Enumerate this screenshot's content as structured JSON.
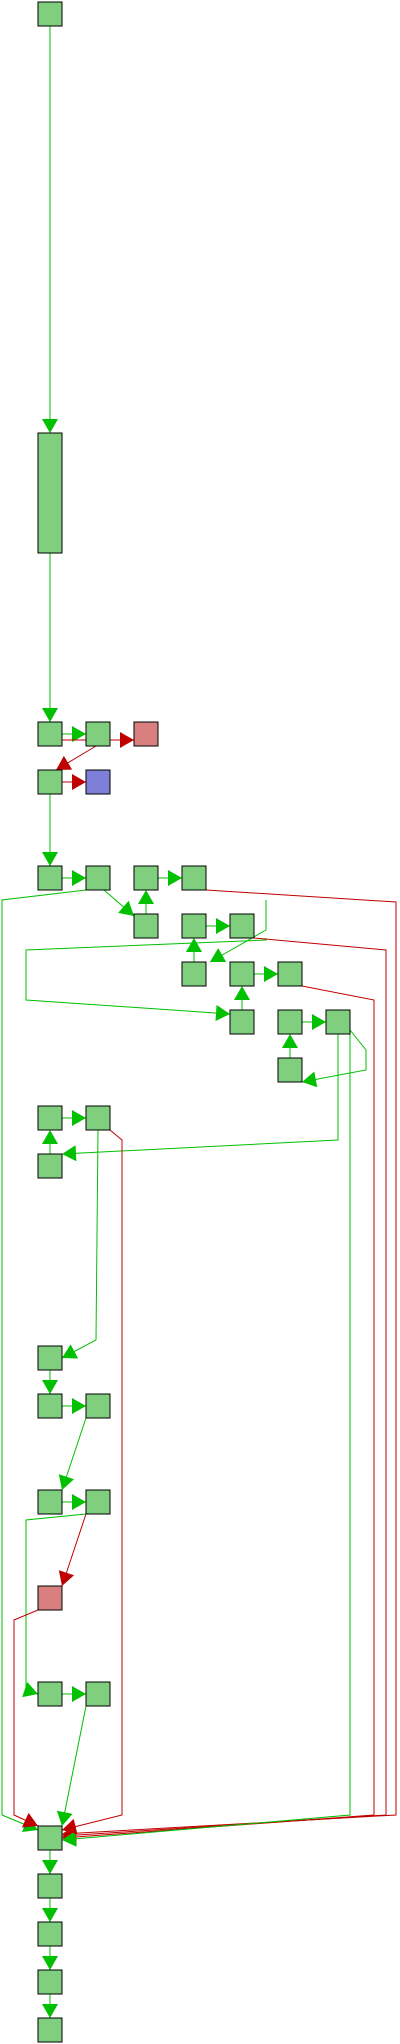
{
  "colors": {
    "node_default": "#7fcf7f",
    "node_error": "#d97f7f",
    "node_exit": "#7f7fd9",
    "edge_true": "#00c000",
    "edge_false": "#c00000",
    "border": "#000000"
  },
  "nodes": [
    {
      "id": "n0",
      "kind": "default"
    },
    {
      "id": "n1",
      "kind": "default"
    },
    {
      "id": "n2",
      "kind": "default"
    },
    {
      "id": "n3",
      "kind": "default"
    },
    {
      "id": "n4",
      "kind": "error"
    },
    {
      "id": "n5",
      "kind": "default"
    },
    {
      "id": "n6",
      "kind": "exit"
    },
    {
      "id": "n7",
      "kind": "default"
    },
    {
      "id": "n8",
      "kind": "default"
    },
    {
      "id": "n9",
      "kind": "default"
    },
    {
      "id": "n10",
      "kind": "default"
    },
    {
      "id": "n11",
      "kind": "default"
    },
    {
      "id": "n12",
      "kind": "default"
    },
    {
      "id": "n13",
      "kind": "default"
    },
    {
      "id": "n14",
      "kind": "default"
    },
    {
      "id": "n15",
      "kind": "default"
    },
    {
      "id": "n16",
      "kind": "default"
    },
    {
      "id": "n17",
      "kind": "default"
    },
    {
      "id": "n18",
      "kind": "default"
    },
    {
      "id": "n19",
      "kind": "default"
    },
    {
      "id": "n20",
      "kind": "default"
    },
    {
      "id": "n21",
      "kind": "default"
    },
    {
      "id": "n22",
      "kind": "default"
    },
    {
      "id": "n23",
      "kind": "default"
    },
    {
      "id": "n24",
      "kind": "default"
    },
    {
      "id": "n25",
      "kind": "default"
    },
    {
      "id": "n26",
      "kind": "default"
    },
    {
      "id": "n27",
      "kind": "default"
    },
    {
      "id": "n28",
      "kind": "default"
    },
    {
      "id": "n29",
      "kind": "error"
    },
    {
      "id": "n30",
      "kind": "default"
    },
    {
      "id": "n31",
      "kind": "default"
    },
    {
      "id": "n32",
      "kind": "default"
    },
    {
      "id": "n33",
      "kind": "default"
    },
    {
      "id": "n34",
      "kind": "default"
    },
    {
      "id": "n35",
      "kind": "default"
    },
    {
      "id": "n36",
      "kind": "default"
    }
  ],
  "edges": [
    {
      "from": "n0",
      "to": "n1",
      "kind": "true"
    },
    {
      "from": "n1",
      "to": "n2",
      "kind": "true"
    },
    {
      "from": "n2",
      "to": "n3",
      "kind": "true"
    },
    {
      "from": "n2",
      "to": "n4",
      "kind": "false"
    },
    {
      "from": "n3",
      "to": "n5",
      "kind": "false"
    },
    {
      "from": "n5",
      "to": "n6",
      "kind": "false"
    },
    {
      "from": "n5",
      "to": "n7",
      "kind": "true"
    },
    {
      "from": "n7",
      "to": "n8",
      "kind": "true"
    },
    {
      "from": "n8",
      "to": "n11",
      "kind": "true"
    },
    {
      "from": "n11",
      "to": "n9",
      "kind": "true"
    },
    {
      "from": "n9",
      "to": "n10",
      "kind": "true"
    },
    {
      "from": "n10",
      "to": "n14",
      "kind": "true"
    },
    {
      "from": "n14",
      "to": "n12",
      "kind": "true"
    },
    {
      "from": "n12",
      "to": "n13",
      "kind": "true"
    },
    {
      "from": "n13",
      "to": "n17",
      "kind": "true"
    },
    {
      "from": "n17",
      "to": "n15",
      "kind": "true"
    },
    {
      "from": "n15",
      "to": "n16",
      "kind": "true"
    },
    {
      "from": "n16",
      "to": "n20",
      "kind": "true"
    },
    {
      "from": "n20",
      "to": "n18",
      "kind": "true"
    },
    {
      "from": "n18",
      "to": "n19",
      "kind": "true"
    },
    {
      "from": "n19",
      "to": "n22",
      "kind": "true"
    },
    {
      "from": "n22",
      "to": "n21",
      "kind": "true"
    },
    {
      "from": "n21",
      "to": "n23",
      "kind": "true"
    },
    {
      "from": "n23",
      "to": "n24",
      "kind": "true"
    },
    {
      "from": "n24",
      "to": "n25",
      "kind": "true"
    },
    {
      "from": "n25",
      "to": "n26",
      "kind": "true"
    },
    {
      "from": "n26",
      "to": "n27",
      "kind": "true"
    },
    {
      "from": "n27",
      "to": "n28",
      "kind": "true"
    },
    {
      "from": "n28",
      "to": "n29",
      "kind": "false"
    },
    {
      "from": "n28",
      "to": "n30",
      "kind": "true"
    },
    {
      "from": "n30",
      "to": "n31",
      "kind": "true"
    },
    {
      "from": "n31",
      "to": "n32",
      "kind": "true"
    },
    {
      "from": "n7",
      "to": "n32",
      "kind": "true"
    },
    {
      "from": "n10",
      "to": "n32",
      "kind": "false"
    },
    {
      "from": "n13",
      "to": "n32",
      "kind": "false"
    },
    {
      "from": "n16",
      "to": "n32",
      "kind": "false"
    },
    {
      "from": "n19",
      "to": "n32",
      "kind": "true"
    },
    {
      "from": "n23",
      "to": "n32",
      "kind": "false"
    },
    {
      "from": "n29",
      "to": "n32",
      "kind": "false"
    },
    {
      "from": "n32",
      "to": "n33",
      "kind": "true"
    },
    {
      "from": "n33",
      "to": "n34",
      "kind": "true"
    },
    {
      "from": "n34",
      "to": "n35",
      "kind": "true"
    },
    {
      "from": "n35",
      "to": "n36",
      "kind": "true"
    }
  ]
}
